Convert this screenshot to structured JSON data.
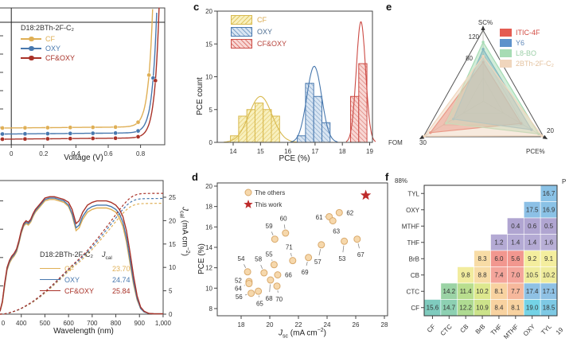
{
  "figure": {
    "background": "#ffffff"
  },
  "panel_a": {
    "legend_title": "D18:2BTh-2F-C₂",
    "xlabel": "Voltage (V)",
    "chart_data": {
      "type": "line",
      "x_ticks": [
        0,
        0.2,
        0.4,
        0.6,
        0.8
      ],
      "x_range_V": [
        -0.07,
        0.95
      ],
      "series": [
        {
          "name": "CF",
          "color": "#DFAF55",
          "jsc_mA_cm2": 24.6,
          "voc_V": 0.872
        },
        {
          "name": "OXY",
          "color": "#4878AE",
          "jsc_mA_cm2": 26.0,
          "voc_V": 0.898
        },
        {
          "name": "CF&OXY",
          "color": "#A93228",
          "jsc_mA_cm2": 27.2,
          "voc_V": 0.912
        }
      ]
    }
  },
  "panel_c": {
    "label": "c",
    "ylabel": "PCE count",
    "xlabel": "PCE (%)",
    "chart_data": {
      "type": "bar",
      "x_ticks": [
        14,
        15,
        16,
        17,
        18,
        19
      ],
      "y_ticks": [
        0,
        5,
        10,
        15,
        20
      ],
      "bin_width": 0.3,
      "series": [
        {
          "name": "CF",
          "start": 13.9,
          "counts": [
            1,
            4,
            5,
            6,
            5,
            4
          ],
          "gauss": {
            "amp": 7,
            "mu": 15.0,
            "sigma": 0.42
          },
          "edge": "#D8B94E",
          "fill": "#F8F0BE",
          "hatch": "#E2C765",
          "text_color": "#D9A94E",
          "hatch_dir": 45
        },
        {
          "name": "OXY",
          "start": 16.35,
          "counts": [
            1,
            9,
            7,
            3
          ],
          "gauss": {
            "amp": 11.6,
            "mu": 16.97,
            "sigma": 0.27
          },
          "edge": "#4878AE",
          "fill": "#D9E5F2",
          "hatch": "#7FA3C9",
          "text_color": "#4E6E92",
          "hatch_dir": -45
        },
        {
          "name": "CF&OXY",
          "start": 18.3,
          "counts": [
            7,
            12
          ],
          "gauss": {
            "amp": 18.4,
            "mu": 18.68,
            "sigma": 0.17
          },
          "edge": "#CC4B45",
          "fill": "#F8D7D4",
          "hatch": "#DD7A72",
          "text_color": "#B8443C",
          "hatch_dir": -45
        }
      ]
    }
  },
  "panel_e": {
    "label": "e",
    "chart_data": {
      "type": "radar",
      "axes": [
        {
          "label": "SC%",
          "max": 120,
          "shown_ticks": [
            120,
            80
          ]
        },
        {
          "label": "FOM",
          "max": 30,
          "shown_ticks": [
            30
          ]
        },
        {
          "label": "PCE%",
          "max": 20,
          "shown_ticks": [
            20
          ]
        }
      ],
      "series": [
        {
          "name": "ITIC-4F",
          "color": "#E45C52",
          "text_color": "#D24A40",
          "values": [
            66,
            26.5,
            12.5
          ]
        },
        {
          "name": "Y6",
          "color": "#5E92CB",
          "text_color": "#5E87B8",
          "values": [
            88,
            15,
            16
          ]
        },
        {
          "name": "L8-BO",
          "color": "#A6DCB4",
          "text_color": "#9CCFA8",
          "values": [
            100,
            18.5,
            18.4
          ]
        },
        {
          "name": "2BTh-2F-C₂",
          "color": "#F0D6BD",
          "text_color": "#E4C3A0",
          "values": [
            76,
            29.5,
            19.5
          ]
        }
      ]
    }
  },
  "panel_b": {
    "legend_title": "D18:2BTh-2F-C₂",
    "jcal_header": {
      "j": "J",
      "sub": "cal"
    },
    "xlabel": "Wavelength (nm)",
    "right_ylabel": {
      "j": "J",
      "sub": "cal",
      "mid": " (mA cm",
      "sup": "−2",
      "end": ")"
    },
    "x_first_tick_fragment": "0",
    "chart_data": {
      "type": "line",
      "x_ticks": [
        400,
        500,
        600,
        700,
        800,
        900,
        1000
      ],
      "x_tick_labels": [
        "400",
        "500",
        "600",
        "700",
        "800",
        "900",
        "1,000"
      ],
      "right_y_ticks": [
        0,
        5,
        10,
        15,
        20,
        25
      ],
      "wavelengths_nm": [
        310,
        320,
        330,
        340,
        350,
        360,
        370,
        380,
        390,
        400,
        410,
        420,
        430,
        440,
        450,
        460,
        480,
        500,
        520,
        540,
        560,
        580,
        600,
        615,
        632,
        645,
        660,
        680,
        700,
        720,
        740,
        760,
        780,
        800,
        815,
        830,
        845,
        860,
        875,
        890,
        905,
        920,
        940,
        960,
        1000
      ],
      "series": [
        {
          "name": "CF",
          "color": "#DFAF55",
          "jcal": "23.70",
          "jcal_num": 23.7,
          "eqe": [
            2,
            8,
            20,
            31,
            36,
            39,
            41,
            44,
            50,
            57,
            62,
            64,
            63,
            65,
            69,
            72,
            76,
            80,
            81,
            81,
            80,
            79,
            76,
            70,
            59,
            61,
            67,
            72,
            74,
            75,
            75,
            75,
            74,
            72,
            68,
            62,
            51,
            36,
            21,
            10,
            4,
            1.5,
            0.5,
            0.3,
            0.2
          ]
        },
        {
          "name": "OXY",
          "color": "#4878AE",
          "jcal": "24.74",
          "jcal_num": 24.74,
          "eqe": [
            2,
            9,
            21,
            32,
            37,
            40,
            42,
            45,
            51,
            58,
            63,
            65,
            64,
            66,
            70,
            73,
            77,
            81,
            82,
            82,
            81,
            80,
            77,
            71,
            61,
            63,
            69,
            74,
            76,
            77,
            77,
            77,
            76,
            74,
            71,
            65,
            54,
            39,
            23,
            11,
            4,
            1.5,
            0.5,
            0.3,
            0.2
          ]
        },
        {
          "name": "CF&OXY",
          "color": "#A93228",
          "jcal": "25.84",
          "jcal_num": 25.84,
          "eqe": [
            2,
            9,
            22,
            33,
            38,
            41,
            43,
            46,
            52,
            59,
            64,
            66,
            65,
            67,
            71,
            74,
            78,
            82,
            83,
            83,
            82,
            81,
            79,
            74,
            64,
            66,
            72,
            77,
            79,
            80,
            80,
            80,
            79,
            77,
            74,
            69,
            59,
            44,
            27,
            13,
            5,
            2,
            0.5,
            0.3,
            0.2
          ]
        }
      ]
    }
  },
  "panel_d": {
    "label": "d",
    "ylabel": "PCE (%)",
    "xlabel": {
      "j": "J",
      "sub": "sc",
      "mid": " (mA cm",
      "sup": "−2",
      "end": ")"
    },
    "legend": {
      "others": "The others",
      "this_work": "This work"
    },
    "chart_data": {
      "type": "scatter",
      "x_ticks": [
        18,
        20,
        22,
        24,
        26,
        28
      ],
      "y_ticks": [
        8,
        10,
        12,
        14,
        16,
        18,
        20
      ],
      "dot_fill": "#F6D8AC",
      "dot_edge": "#D9A96B",
      "star_color": "#BE2B2B",
      "points": [
        {
          "id": "52",
          "x": 18.55,
          "y": 10.65,
          "lx": 17.8,
          "ly": 10.75
        },
        {
          "id": "53",
          "x": 25.2,
          "y": 14.6,
          "lx": 25.05,
          "ly": 12.9
        },
        {
          "id": "54",
          "x": 18.45,
          "y": 11.6,
          "lx": 18.0,
          "ly": 12.9
        },
        {
          "id": "55",
          "x": 20.3,
          "y": 12.3,
          "lx": 19.95,
          "ly": 13.35
        },
        {
          "id": "56",
          "x": 18.7,
          "y": 9.5,
          "lx": 17.85,
          "ly": 9.15
        },
        {
          "id": "57",
          "x": 23.6,
          "y": 14.25,
          "lx": 23.35,
          "ly": 12.6
        },
        {
          "id": "58",
          "x": 19.6,
          "y": 11.5,
          "lx": 19.2,
          "ly": 12.85
        },
        {
          "id": "59",
          "x": 20.35,
          "y": 14.8,
          "lx": 19.95,
          "ly": 16.1
        },
        {
          "id": "60",
          "x": 21.1,
          "y": 15.4,
          "lx": 20.95,
          "ly": 16.85
        },
        {
          "id": "61",
          "x": 24.15,
          "y": 17.0,
          "lx": 23.45,
          "ly": 16.95
        },
        {
          "id": "62",
          "x": 24.85,
          "y": 17.4,
          "lx": 25.6,
          "ly": 17.4
        },
        {
          "id": "63",
          "x": 24.4,
          "y": 16.6,
          "lx": 24.65,
          "ly": 15.6
        },
        {
          "id": "64",
          "x": 18.55,
          "y": 10.45,
          "lx": 17.8,
          "ly": 10.0
        },
        {
          "id": "65",
          "x": 19.2,
          "y": 9.7,
          "lx": 19.3,
          "ly": 8.5
        },
        {
          "id": "66",
          "x": 20.55,
          "y": 11.3,
          "lx": 21.3,
          "ly": 11.3
        },
        {
          "id": "67",
          "x": 26.1,
          "y": 14.8,
          "lx": 26.35,
          "ly": 13.3
        },
        {
          "id": "68",
          "x": 20.05,
          "y": 10.8,
          "lx": 19.95,
          "ly": 9.0
        },
        {
          "id": "69",
          "x": 22.7,
          "y": 13.0,
          "lx": 22.45,
          "ly": 11.6
        },
        {
          "id": "70",
          "x": 20.5,
          "y": 10.2,
          "lx": 20.65,
          "ly": 8.95
        },
        {
          "id": "71",
          "x": 21.6,
          "y": 12.7,
          "lx": 21.35,
          "ly": 14.05
        }
      ],
      "this_work": {
        "x": 26.7,
        "y": 19.1
      }
    }
  },
  "panel_f": {
    "label": "f",
    "corner_annotation": "88%",
    "fragment_top_right": "P",
    "fragment_bottom_right": "19",
    "chart_data": {
      "type": "heatmap",
      "rows": [
        "TYL",
        "OXY",
        "MTHF",
        "THF",
        "BrB",
        "CB",
        "CTC",
        "CF"
      ],
      "cols": [
        "CF",
        "CTC",
        "CB",
        "BrB",
        "THF",
        "MTHF",
        "OXY",
        "TYL"
      ],
      "cells": [
        {
          "r": 0,
          "c": 7,
          "v": "16.7",
          "color": "#8AC2E6"
        },
        {
          "r": 1,
          "c": 6,
          "v": "17.5",
          "color": "#8CC0E6"
        },
        {
          "r": 1,
          "c": 7,
          "v": "16.9",
          "color": "#8AC2E6"
        },
        {
          "r": 2,
          "c": 5,
          "v": "0.4",
          "color": "#B0A5D1"
        },
        {
          "r": 2,
          "c": 6,
          "v": "0.6",
          "color": "#B0A5D1"
        },
        {
          "r": 2,
          "c": 7,
          "v": "0.5",
          "color": "#B0A5D1"
        },
        {
          "r": 3,
          "c": 4,
          "v": "1.2",
          "color": "#B4AAD4"
        },
        {
          "r": 3,
          "c": 5,
          "v": "1.4",
          "color": "#B4AAD4"
        },
        {
          "r": 3,
          "c": 6,
          "v": "1.4",
          "color": "#B4AAD4"
        },
        {
          "r": 3,
          "c": 7,
          "v": "1.6",
          "color": "#B8AFD6"
        },
        {
          "r": 4,
          "c": 3,
          "v": "8.3",
          "color": "#F8DCA6"
        },
        {
          "r": 4,
          "c": 4,
          "v": "6.0",
          "color": "#F2978F"
        },
        {
          "r": 4,
          "c": 5,
          "v": "5.6",
          "color": "#F2978F"
        },
        {
          "r": 4,
          "c": 6,
          "v": "9.2",
          "color": "#F4EE9E"
        },
        {
          "r": 4,
          "c": 7,
          "v": "9.1",
          "color": "#F4EE9E"
        },
        {
          "r": 5,
          "c": 2,
          "v": "9.8",
          "color": "#F2EC9E"
        },
        {
          "r": 5,
          "c": 3,
          "v": "8.8",
          "color": "#F8DCA6"
        },
        {
          "r": 5,
          "c": 4,
          "v": "7.4",
          "color": "#F4A59B"
        },
        {
          "r": 5,
          "c": 5,
          "v": "7.0",
          "color": "#F4A59B"
        },
        {
          "r": 5,
          "c": 6,
          "v": "10.5",
          "color": "#EFEC9C"
        },
        {
          "r": 5,
          "c": 7,
          "v": "10.2",
          "color": "#EFEC9C"
        },
        {
          "r": 6,
          "c": 1,
          "v": "14.2",
          "color": "#9BD3A5"
        },
        {
          "r": 6,
          "c": 2,
          "v": "11.4",
          "color": "#B9DE8E"
        },
        {
          "r": 6,
          "c": 3,
          "v": "10.2",
          "color": "#DDE88E"
        },
        {
          "r": 6,
          "c": 4,
          "v": "8.1",
          "color": "#F8D2A0"
        },
        {
          "r": 6,
          "c": 5,
          "v": "7.7",
          "color": "#F6B89C"
        },
        {
          "r": 6,
          "c": 6,
          "v": "17.4",
          "color": "#8FC1E4"
        },
        {
          "r": 6,
          "c": 7,
          "v": "17.1",
          "color": "#8FC1E4"
        },
        {
          "r": 7,
          "c": 0,
          "v": "15.6",
          "color": "#7FCBBE"
        },
        {
          "r": 7,
          "c": 1,
          "v": "14.7",
          "color": "#8DD0B2"
        },
        {
          "r": 7,
          "c": 2,
          "v": "12.2",
          "color": "#AFDB92"
        },
        {
          "r": 7,
          "c": 3,
          "v": "10.9",
          "color": "#CCE38A"
        },
        {
          "r": 7,
          "c": 4,
          "v": "8.4",
          "color": "#F8D2A0"
        },
        {
          "r": 7,
          "c": 5,
          "v": "8.1",
          "color": "#F8D2A0"
        },
        {
          "r": 7,
          "c": 6,
          "v": "19.0",
          "color": "#74D3E6"
        },
        {
          "r": 7,
          "c": 7,
          "v": "18.5",
          "color": "#7EC9E4"
        }
      ]
    }
  }
}
